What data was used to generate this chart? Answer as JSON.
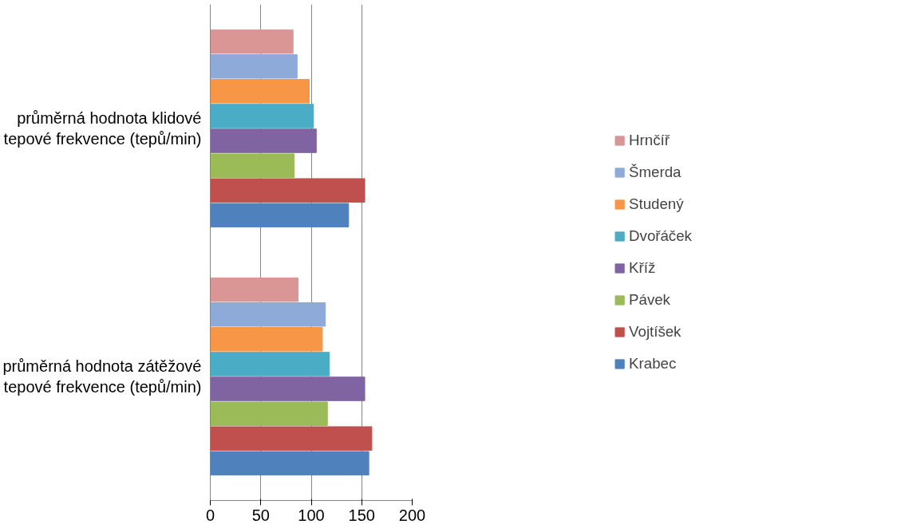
{
  "chart_data": {
    "type": "bar",
    "orientation": "horizontal",
    "categories": [
      "průměrná hodnota klidové tepové frekvence (tepů/min)",
      "průměrná hodnota zátěžové tepové frekvence (tepů/min)"
    ],
    "series": [
      {
        "name": "Krabec",
        "color": "#4f81bd",
        "values": [
          137,
          157
        ]
      },
      {
        "name": "Vojtíšek",
        "color": "#c0504d",
        "values": [
          153,
          160
        ]
      },
      {
        "name": "Pávek",
        "color": "#9bbb59",
        "values": [
          83,
          116
        ]
      },
      {
        "name": "Kříž",
        "color": "#8064a2",
        "values": [
          105,
          153
        ]
      },
      {
        "name": "Dvořáček",
        "color": "#4bacc6",
        "values": [
          102,
          118
        ]
      },
      {
        "name": "Studený",
        "color": "#f79646",
        "values": [
          98,
          111
        ]
      },
      {
        "name": "Šmerda",
        "color": "#8eaad8",
        "values": [
          86,
          114
        ]
      },
      {
        "name": "Hrnčíř",
        "color": "#d99694",
        "values": [
          82,
          87
        ]
      }
    ],
    "xlim": [
      0,
      200
    ],
    "xticks": [
      0,
      50,
      100,
      150,
      200
    ],
    "grid": "x",
    "legend": "right"
  }
}
